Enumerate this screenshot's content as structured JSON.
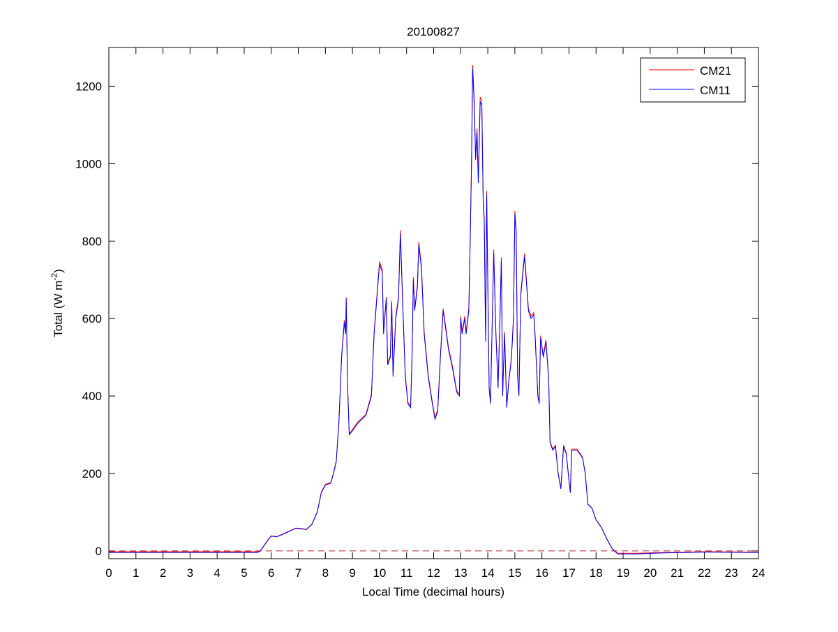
{
  "chart_data": {
    "type": "line",
    "title": "20100827",
    "xlabel": "Local Time (decimal hours)",
    "ylabel": "Total (W m",
    "ylabel_sup": "-2",
    "ylabel_end": ")",
    "xlim": [
      0,
      24
    ],
    "ylim": [
      -20,
      1300
    ],
    "xticks": [
      0,
      1,
      2,
      3,
      4,
      5,
      6,
      7,
      8,
      9,
      10,
      11,
      12,
      13,
      14,
      15,
      16,
      17,
      18,
      19,
      20,
      21,
      22,
      23,
      24
    ],
    "yticks": [
      0,
      200,
      400,
      600,
      800,
      1000,
      1200
    ],
    "grid": false,
    "legend_position": "top-right",
    "reference_line": {
      "y": 0,
      "style": "dashed",
      "color": "#b22222"
    },
    "x": [
      0,
      5.5,
      5.6,
      5.75,
      5.9,
      6.0,
      6.2,
      6.5,
      6.9,
      7.1,
      7.3,
      7.5,
      7.7,
      7.85,
      8.0,
      8.2,
      8.3,
      8.4,
      8.5,
      8.6,
      8.7,
      8.75,
      8.77,
      8.82,
      8.88,
      9.0,
      9.2,
      9.5,
      9.7,
      9.8,
      9.9,
      10.0,
      10.1,
      10.15,
      10.25,
      10.3,
      10.4,
      10.45,
      10.5,
      10.6,
      10.7,
      10.77,
      10.85,
      10.95,
      11.05,
      11.15,
      11.2,
      11.25,
      11.3,
      11.4,
      11.45,
      11.55,
      11.65,
      11.8,
      11.95,
      12.05,
      12.15,
      12.25,
      12.35,
      12.45,
      12.55,
      12.7,
      12.85,
      12.95,
      13.0,
      13.05,
      13.15,
      13.2,
      13.3,
      13.35,
      13.4,
      13.44,
      13.5,
      13.55,
      13.6,
      13.65,
      13.72,
      13.78,
      13.83,
      13.87,
      13.92,
      13.96,
      14.0,
      14.05,
      14.1,
      14.22,
      14.3,
      14.38,
      14.45,
      14.5,
      14.55,
      14.62,
      14.7,
      14.78,
      14.85,
      14.9,
      14.95,
      15.0,
      15.05,
      15.1,
      15.15,
      15.22,
      15.3,
      15.36,
      15.42,
      15.5,
      15.6,
      15.7,
      15.75,
      15.85,
      15.9,
      15.95,
      16.05,
      16.15,
      16.25,
      16.3,
      16.4,
      16.5,
      16.6,
      16.7,
      16.8,
      16.9,
      17.0,
      17.05,
      17.1,
      17.3,
      17.5,
      17.6,
      17.7,
      17.85,
      18.0,
      18.2,
      18.4,
      18.6,
      18.8,
      19.5,
      20.5,
      22,
      24
    ],
    "series": [
      {
        "name": "CM21",
        "color": "#ff0000",
        "y": [
          -2,
          -2,
          1,
          16,
          31,
          39,
          37,
          46,
          59,
          58,
          56,
          69,
          101,
          152,
          172,
          177,
          202,
          233,
          334,
          505,
          596,
          566,
          655,
          434,
          303,
          313,
          333,
          353,
          404,
          566,
          656,
          747,
          727,
          566,
          656,
          485,
          505,
          646,
          455,
          606,
          656,
          828,
          656,
          455,
          384,
          374,
          505,
          707,
          626,
          687,
          798,
          737,
          566,
          455,
          384,
          344,
          364,
          505,
          626,
          576,
          525,
          475,
          414,
          404,
          606,
          566,
          606,
          566,
          626,
          808,
          1010,
          1255,
          1162,
          1020,
          1091,
          960,
          1172,
          1162,
          909,
          859,
          545,
          929,
          697,
          424,
          384,
          778,
          566,
          424,
          606,
          758,
          404,
          566,
          374,
          444,
          485,
          535,
          606,
          878,
          828,
          455,
          404,
          667,
          727,
          768,
          707,
          626,
          606,
          616,
          556,
          404,
          384,
          556,
          505,
          545,
          444,
          283,
          263,
          273,
          202,
          162,
          273,
          253,
          182,
          152,
          263,
          263,
          242,
          202,
          121,
          111,
          81,
          61,
          31,
          6,
          -6,
          -6,
          -4,
          -2,
          -3
        ]
      },
      {
        "name": "CM11",
        "color": "#0000ff",
        "y": [
          -4,
          -4,
          0,
          15,
          30,
          38,
          36,
          45,
          58,
          57,
          55,
          68,
          100,
          150,
          170,
          175,
          200,
          230,
          330,
          500,
          590,
          560,
          650,
          430,
          300,
          310,
          330,
          350,
          400,
          560,
          650,
          740,
          720,
          560,
          650,
          480,
          500,
          640,
          450,
          600,
          650,
          820,
          650,
          450,
          380,
          370,
          500,
          700,
          620,
          680,
          790,
          730,
          560,
          450,
          380,
          340,
          360,
          500,
          620,
          570,
          520,
          470,
          410,
          400,
          600,
          560,
          600,
          560,
          620,
          800,
          1000,
          1245,
          1150,
          1010,
          1080,
          950,
          1160,
          1150,
          900,
          850,
          540,
          920,
          690,
          420,
          380,
          770,
          560,
          420,
          600,
          750,
          400,
          560,
          370,
          440,
          480,
          530,
          600,
          870,
          820,
          450,
          400,
          660,
          720,
          760,
          700,
          620,
          600,
          610,
          550,
          400,
          380,
          550,
          500,
          540,
          440,
          280,
          260,
          270,
          200,
          160,
          270,
          250,
          180,
          150,
          260,
          260,
          240,
          200,
          120,
          110,
          80,
          60,
          30,
          5,
          -8,
          -8,
          -5,
          -3,
          -4
        ]
      }
    ]
  }
}
